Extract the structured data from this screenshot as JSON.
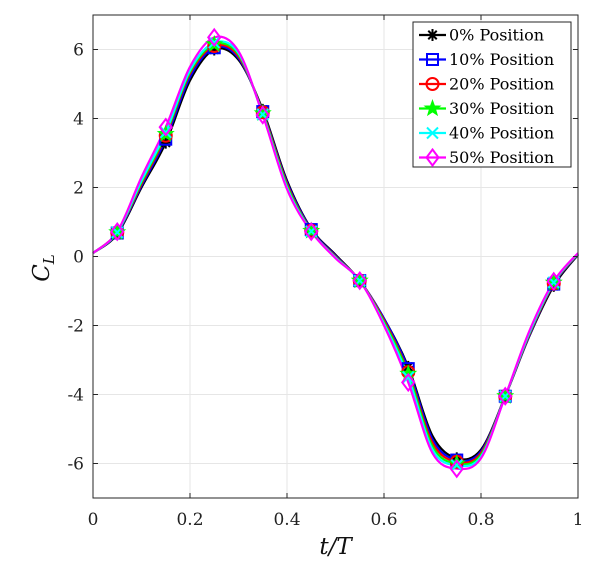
{
  "chart_data": {
    "type": "line",
    "xlabel": "t/T",
    "ylabel_main": "C",
    "ylabel_sub": "L",
    "xlim": [
      0,
      1
    ],
    "ylim": [
      -7,
      7
    ],
    "xticks": [
      0,
      0.2,
      0.4,
      0.6,
      0.8,
      1
    ],
    "xtick_labels": [
      "0",
      "0.2",
      "0.4",
      "0.6",
      "0.8",
      "1"
    ],
    "yticks": [
      -6,
      -4,
      -2,
      0,
      2,
      4,
      6
    ],
    "ytick_labels": [
      "-6",
      "-4",
      "-2",
      "0",
      "2",
      "4",
      "6"
    ],
    "grid": true,
    "legend_position": "top-right",
    "marker_x": [
      0.05,
      0.15,
      0.25,
      0.35,
      0.45,
      0.55,
      0.65,
      0.75,
      0.85,
      0.95
    ],
    "series": [
      {
        "name": "0% Position",
        "color": "#000000",
        "marker": "asterisk",
        "x": [
          0,
          0.05,
          0.1,
          0.15,
          0.2,
          0.25,
          0.3,
          0.35,
          0.4,
          0.45,
          0.5,
          0.55,
          0.6,
          0.65,
          0.7,
          0.75,
          0.8,
          0.85,
          0.9,
          0.95,
          1
        ],
        "y": [
          0.1,
          0.65,
          2.0,
          3.3,
          5.1,
          6.0,
          5.7,
          4.25,
          2.2,
          0.8,
          0.05,
          -0.7,
          -1.8,
          -3.2,
          -5.2,
          -5.85,
          -5.6,
          -4.05,
          -2.3,
          -0.85,
          0.05
        ]
      },
      {
        "name": "10% Position",
        "color": "#0000ff",
        "marker": "square",
        "x": [
          0,
          0.05,
          0.1,
          0.15,
          0.2,
          0.25,
          0.3,
          0.35,
          0.4,
          0.45,
          0.5,
          0.55,
          0.6,
          0.65,
          0.7,
          0.75,
          0.8,
          0.85,
          0.9,
          0.95,
          1
        ],
        "y": [
          0.1,
          0.68,
          2.05,
          3.4,
          5.2,
          6.05,
          5.75,
          4.2,
          2.15,
          0.78,
          0.02,
          -0.7,
          -1.8,
          -3.25,
          -5.3,
          -5.9,
          -5.65,
          -4.05,
          -2.28,
          -0.8,
          0.06
        ]
      },
      {
        "name": "20% Position",
        "color": "#ff0000",
        "marker": "circle",
        "x": [
          0,
          0.05,
          0.1,
          0.15,
          0.2,
          0.25,
          0.3,
          0.35,
          0.4,
          0.45,
          0.5,
          0.55,
          0.6,
          0.65,
          0.7,
          0.75,
          0.8,
          0.85,
          0.9,
          0.95,
          1
        ],
        "y": [
          0.1,
          0.7,
          2.1,
          3.5,
          5.3,
          6.1,
          5.8,
          4.18,
          2.1,
          0.75,
          0.0,
          -0.7,
          -1.85,
          -3.35,
          -5.4,
          -5.95,
          -5.7,
          -4.05,
          -2.25,
          -0.78,
          0.07
        ]
      },
      {
        "name": "30% Position",
        "color": "#00ff00",
        "marker": "star",
        "x": [
          0,
          0.05,
          0.1,
          0.15,
          0.2,
          0.25,
          0.3,
          0.35,
          0.4,
          0.45,
          0.5,
          0.55,
          0.6,
          0.65,
          0.7,
          0.75,
          0.8,
          0.85,
          0.9,
          0.95,
          1
        ],
        "y": [
          0.1,
          0.7,
          2.15,
          3.55,
          5.35,
          6.15,
          5.85,
          4.15,
          2.05,
          0.74,
          -0.02,
          -0.7,
          -1.9,
          -3.4,
          -5.5,
          -6.0,
          -5.75,
          -4.05,
          -2.22,
          -0.76,
          0.08
        ]
      },
      {
        "name": "40% Position",
        "color": "#00ffff",
        "marker": "x",
        "x": [
          0,
          0.05,
          0.1,
          0.15,
          0.2,
          0.25,
          0.3,
          0.35,
          0.4,
          0.45,
          0.5,
          0.55,
          0.6,
          0.65,
          0.7,
          0.75,
          0.8,
          0.85,
          0.9,
          0.95,
          1
        ],
        "y": [
          0.1,
          0.7,
          2.2,
          3.6,
          5.4,
          6.2,
          5.9,
          4.12,
          2.0,
          0.73,
          -0.03,
          -0.7,
          -1.95,
          -3.5,
          -5.6,
          -6.05,
          -5.8,
          -4.05,
          -2.2,
          -0.75,
          0.09
        ]
      },
      {
        "name": "50% Position",
        "color": "#ff00ff",
        "marker": "diamond",
        "x": [
          0,
          0.05,
          0.1,
          0.15,
          0.2,
          0.25,
          0.3,
          0.35,
          0.4,
          0.45,
          0.5,
          0.55,
          0.6,
          0.65,
          0.7,
          0.75,
          0.8,
          0.85,
          0.9,
          0.95,
          1
        ],
        "y": [
          0.1,
          0.72,
          2.3,
          3.75,
          5.5,
          6.35,
          5.95,
          4.1,
          1.95,
          0.72,
          -0.05,
          -0.7,
          -2.0,
          -3.65,
          -5.7,
          -6.15,
          -5.85,
          -4.05,
          -2.15,
          -0.72,
          0.1
        ]
      }
    ]
  }
}
